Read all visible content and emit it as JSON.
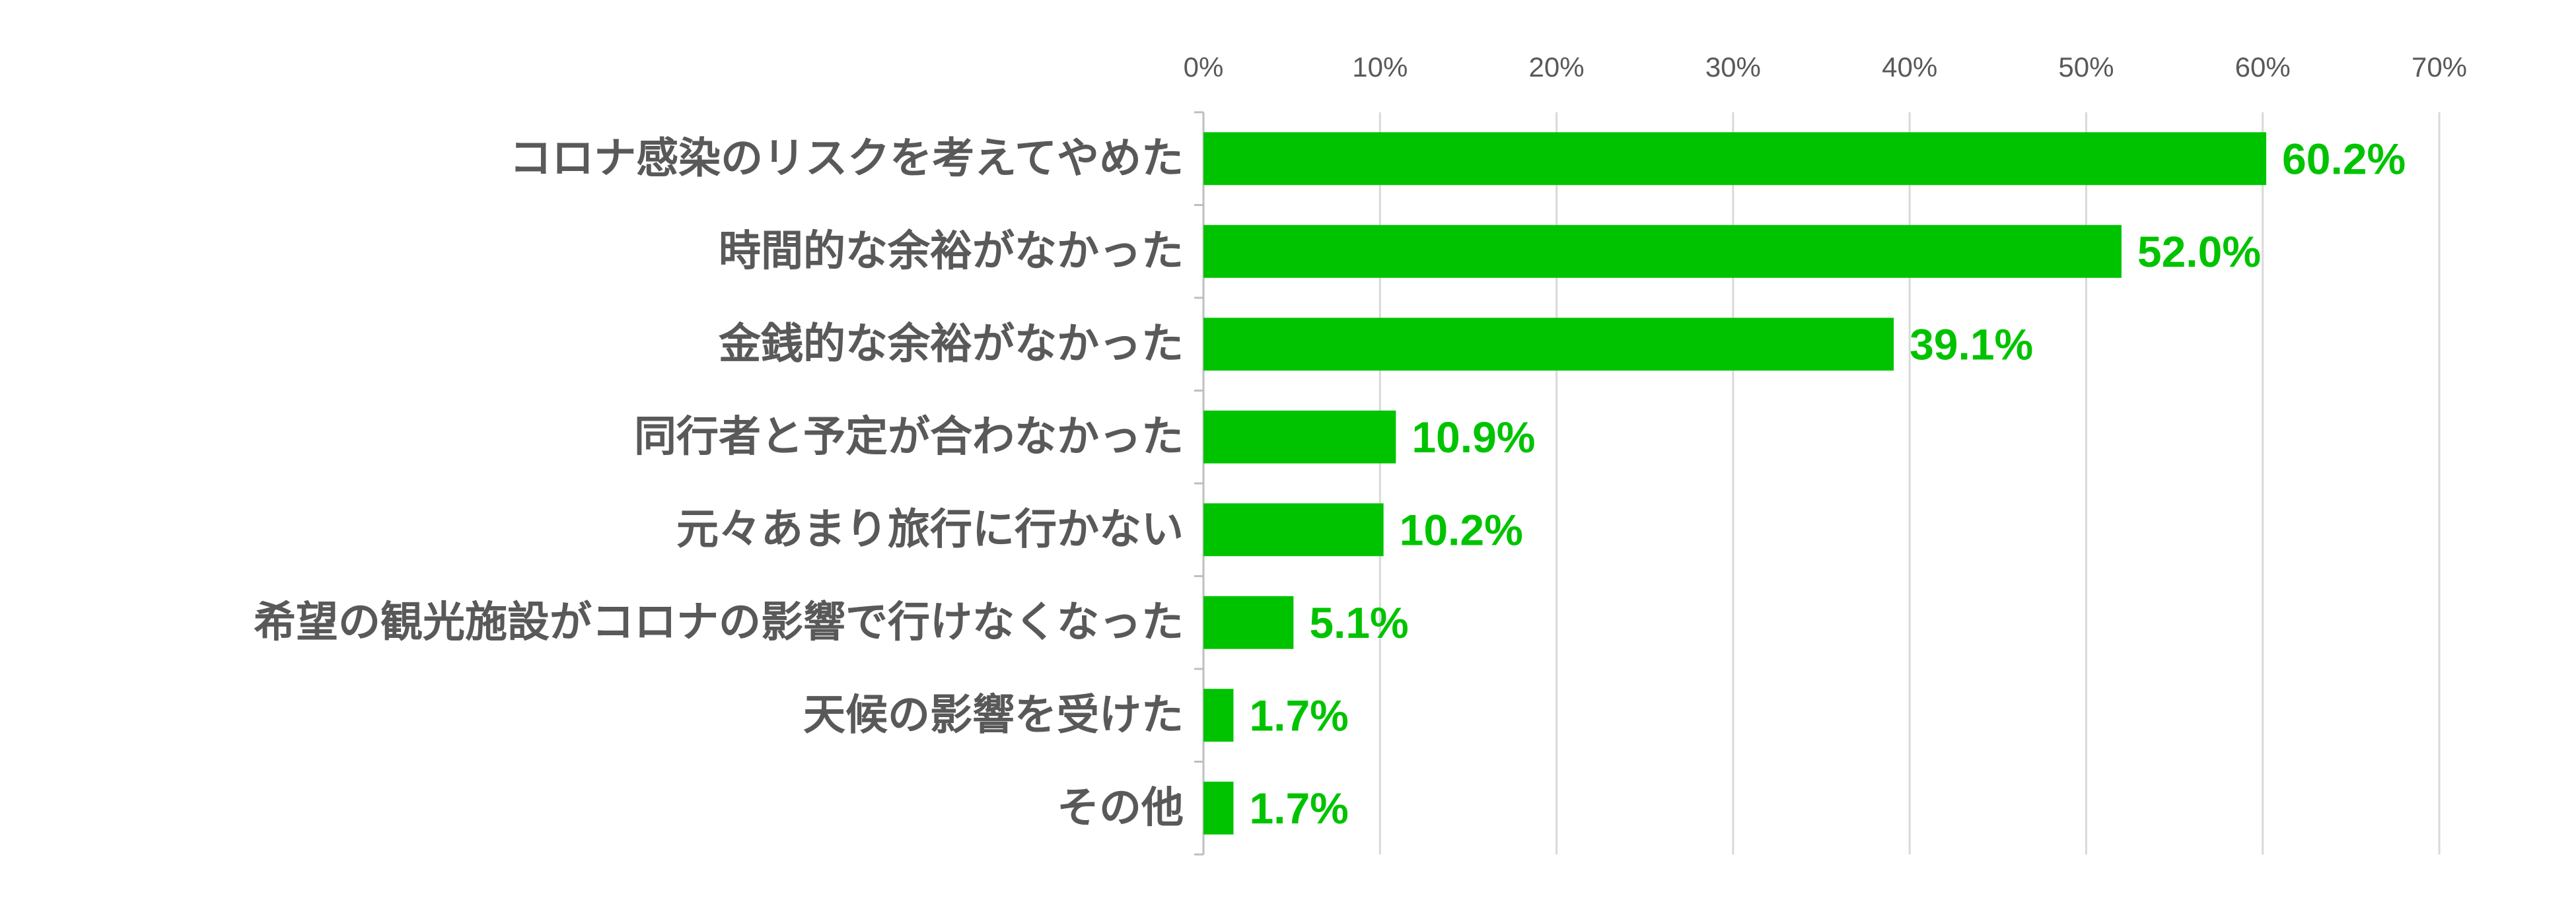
{
  "chart_data": {
    "type": "bar",
    "orientation": "horizontal",
    "categories": [
      "コロナ感染のリスクを考えてやめた",
      "時間的な余裕がなかった",
      "金銭的な余裕がなかった",
      "同行者と予定が合わなかった",
      "元々あまり旅行に行かない",
      "希望の観光施設がコロナの影響で行けなくなった",
      "天候の影響を受けた",
      "その他"
    ],
    "values": [
      60.2,
      52.0,
      39.1,
      10.9,
      10.2,
      5.1,
      1.7,
      1.7
    ],
    "value_labels": [
      "60.2%",
      "52.0%",
      "39.1%",
      "10.9%",
      "10.2%",
      "5.1%",
      "1.7%",
      "1.7%"
    ],
    "x_ticks": [
      "0%",
      "10%",
      "20%",
      "30%",
      "40%",
      "50%",
      "60%",
      "70%"
    ],
    "xlim": [
      0,
      70
    ],
    "x_axis_position": "top",
    "grid": true,
    "title": "",
    "xlabel": "",
    "ylabel": "",
    "colors": {
      "bar": "#00c300",
      "value_label": "#00c300",
      "category_label": "#595959",
      "tick_label": "#595959",
      "grid": "#d9d9d9",
      "axis": "#bfbfbf"
    }
  }
}
